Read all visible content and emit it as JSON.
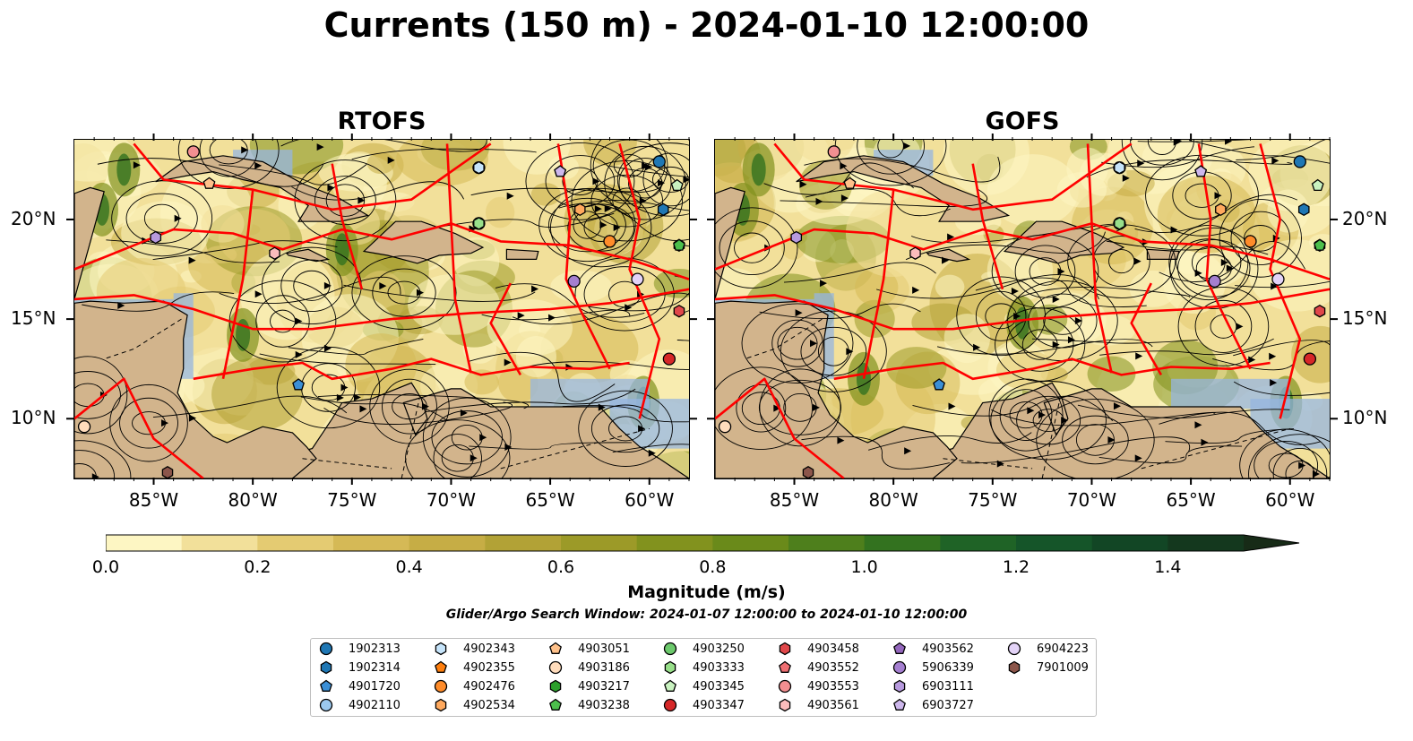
{
  "title": "Currents (150 m) - 2024-01-10 12:00:00",
  "panels": [
    {
      "title": "RTOFS"
    },
    {
      "title": "GOFS"
    }
  ],
  "axes": {
    "lon_ticks": [
      "85°W",
      "80°W",
      "75°W",
      "70°W",
      "65°W",
      "60°W"
    ],
    "lat_ticks": [
      "20°N",
      "15°N",
      "10°N"
    ]
  },
  "colorbar": {
    "label": "Magnitude (m/s)",
    "ticks": [
      "0.0",
      "0.2",
      "0.4",
      "0.6",
      "0.8",
      "1.0",
      "1.2",
      "1.4"
    ],
    "colors": [
      "#fdf6c3",
      "#f2e09a",
      "#e4cb72",
      "#d5b956",
      "#c6ad45",
      "#b2a236",
      "#9c9a28",
      "#82921e",
      "#6a8a1a",
      "#4e7f1c",
      "#33721f",
      "#1f6326",
      "#155529",
      "#124625",
      "#14381e",
      "#172b17"
    ]
  },
  "search_window": "Glider/Argo Search Window: 2024-01-07 12:00:00 to 2024-01-10 12:00:00",
  "legend": [
    {
      "id": "1902313",
      "shape": "circle",
      "color": "#1f77b4"
    },
    {
      "id": "1902314",
      "shape": "hexagon",
      "color": "#1f77b4"
    },
    {
      "id": "4901720",
      "shape": "pentagon",
      "color": "#3b8fd6"
    },
    {
      "id": "4902110",
      "shape": "circle",
      "color": "#9cc9ef"
    },
    {
      "id": "4902343",
      "shape": "hexagon",
      "color": "#c6e4fa"
    },
    {
      "id": "4902355",
      "shape": "pentagon",
      "color": "#ff7f0e"
    },
    {
      "id": "4902476",
      "shape": "circle",
      "color": "#ff8c2a"
    },
    {
      "id": "4902534",
      "shape": "hexagon",
      "color": "#ffa95e"
    },
    {
      "id": "4903051",
      "shape": "pentagon",
      "color": "#ffc18a"
    },
    {
      "id": "4903186",
      "shape": "circle",
      "color": "#ffdcbc"
    },
    {
      "id": "4903217",
      "shape": "hexagon",
      "color": "#2ca02c"
    },
    {
      "id": "4903238",
      "shape": "pentagon",
      "color": "#4cbf4c"
    },
    {
      "id": "4903250",
      "shape": "circle",
      "color": "#6cc96c"
    },
    {
      "id": "4903333",
      "shape": "hexagon",
      "color": "#98df8a"
    },
    {
      "id": "4903345",
      "shape": "pentagon",
      "color": "#c9f2c0"
    },
    {
      "id": "4903347",
      "shape": "circle",
      "color": "#d62728"
    },
    {
      "id": "4903458",
      "shape": "hexagon",
      "color": "#e0474a"
    },
    {
      "id": "4903552",
      "shape": "pentagon",
      "color": "#ef6f72"
    },
    {
      "id": "4903553",
      "shape": "circle",
      "color": "#f38f91"
    },
    {
      "id": "4903561",
      "shape": "hexagon",
      "color": "#fbbcbc"
    },
    {
      "id": "4903562",
      "shape": "pentagon",
      "color": "#9467bd"
    },
    {
      "id": "5906339",
      "shape": "circle",
      "color": "#a57fd0"
    },
    {
      "id": "6903111",
      "shape": "hexagon",
      "color": "#b79ade"
    },
    {
      "id": "6903727",
      "shape": "pentagon",
      "color": "#cdb7ec"
    },
    {
      "id": "6904223",
      "shape": "circle",
      "color": "#e3d3f7"
    },
    {
      "id": "7901009",
      "shape": "hexagon",
      "color": "#8c564b"
    }
  ],
  "chart_data": {
    "type": "map",
    "title": "Currents (150 m) - 2024-01-10 12:00:00",
    "panels": [
      "RTOFS",
      "GOFS"
    ],
    "extent": {
      "lon": [
        -89,
        -58
      ],
      "lat": [
        7,
        24
      ]
    },
    "colorbar": {
      "label": "Magnitude (m/s)",
      "range": [
        0.0,
        1.5
      ],
      "step": 0.1,
      "extend": "max"
    },
    "floats": [
      {
        "id": "1902313",
        "lon": -59.5,
        "lat": 22.9
      },
      {
        "id": "1902314",
        "lon": -59.3,
        "lat": 20.5
      },
      {
        "id": "4901720",
        "lon": -77.7,
        "lat": 11.7
      },
      {
        "id": "4902110",
        "lon": -68.6,
        "lat": 22.6
      },
      {
        "id": "4902343",
        "lon": -68.6,
        "lat": 22.6
      },
      {
        "id": "4902355",
        "lon": -62.0,
        "lat": 18.9
      },
      {
        "id": "4902476",
        "lon": -62.0,
        "lat": 18.9
      },
      {
        "id": "4902534",
        "lon": -63.5,
        "lat": 20.5
      },
      {
        "id": "4903051",
        "lon": -82.2,
        "lat": 21.8
      },
      {
        "id": "4903186",
        "lon": -88.5,
        "lat": 9.6
      },
      {
        "id": "4903217",
        "lon": -58.5,
        "lat": 18.7
      },
      {
        "id": "4903238",
        "lon": -58.5,
        "lat": 18.7
      },
      {
        "id": "4903250",
        "lon": -68.6,
        "lat": 19.8
      },
      {
        "id": "4903333",
        "lon": -68.6,
        "lat": 19.8
      },
      {
        "id": "4903345",
        "lon": -58.6,
        "lat": 21.7
      },
      {
        "id": "4903347",
        "lon": -59.0,
        "lat": 13.0
      },
      {
        "id": "4903458",
        "lon": -58.5,
        "lat": 15.4
      },
      {
        "id": "4903552",
        "lon": -83.0,
        "lat": 23.4
      },
      {
        "id": "4903553",
        "lon": -83.0,
        "lat": 23.4
      },
      {
        "id": "4903561",
        "lon": -78.9,
        "lat": 18.3
      },
      {
        "id": "4903562",
        "lon": -64.5,
        "lat": 22.4
      },
      {
        "id": "5906339",
        "lon": -63.8,
        "lat": 16.9
      },
      {
        "id": "6903111",
        "lon": -84.9,
        "lat": 19.1
      },
      {
        "id": "6903727",
        "lon": -64.5,
        "lat": 22.4
      },
      {
        "id": "6904223",
        "lon": -60.6,
        "lat": 17.0
      },
      {
        "id": "7901009",
        "lon": -84.3,
        "lat": 7.3
      }
    ]
  }
}
